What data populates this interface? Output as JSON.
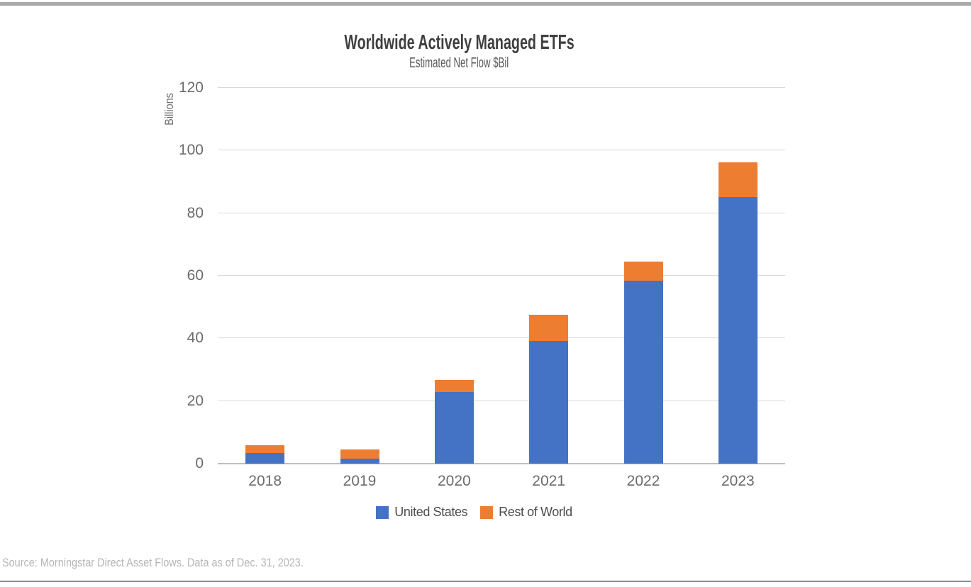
{
  "chart_data": {
    "type": "bar",
    "stacked": true,
    "title": "Worldwide Actively Managed ETFs",
    "subtitle": "Estimated Net Flow $Bil",
    "ylabel": "Billions",
    "xlabel": "",
    "categories": [
      "2018",
      "2019",
      "2020",
      "2021",
      "2022",
      "2023"
    ],
    "series": [
      {
        "name": "United States",
        "color": "#4472C4",
        "values": [
          3.5,
          1.5,
          22.8,
          39.2,
          58.4,
          85.2
        ]
      },
      {
        "name": "Rest of World",
        "color": "#ED7D31",
        "values": [
          2.5,
          3.0,
          4.0,
          8.3,
          6.1,
          11.0
        ]
      }
    ],
    "ylim": [
      0,
      120
    ],
    "yticks": [
      0,
      20,
      40,
      60,
      80,
      100,
      120
    ],
    "grid": true,
    "legend_position": "bottom"
  },
  "footer": {
    "source_note": "Source: Morningstar Direct Asset Flows. Data as of Dec. 31, 2023."
  },
  "colors": {
    "grid": "#D9D9D9",
    "baseline": "#BFBFBF",
    "top_rule": "#A9A9A9",
    "bottom_rule": "#8F8F8F",
    "title_text": "#3F3F3F",
    "tick_text": "#6B6B6B",
    "legend_text": "#4D4D4D",
    "source_text": "#B5B5B5"
  }
}
